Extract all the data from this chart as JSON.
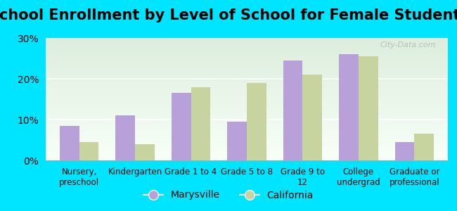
{
  "title": "School Enrollment by Level of School for Female Students",
  "categories": [
    "Nursery,\npreschool",
    "Kindergarten",
    "Grade 1 to 4",
    "Grade 5 to 8",
    "Grade 9 to\n12",
    "College\nundergrad",
    "Graduate or\nprofessional"
  ],
  "marysville": [
    8.5,
    11.0,
    16.5,
    9.5,
    24.5,
    26.0,
    4.5
  ],
  "california": [
    4.5,
    4.0,
    18.0,
    19.0,
    21.0,
    25.5,
    6.5
  ],
  "marysville_color": "#b8a0d8",
  "california_color": "#c8d4a0",
  "background_outer": "#00e5ff",
  "background_inner_top": "#ddeedd",
  "background_inner_bottom": "#f8fff8",
  "ylim": [
    0,
    30
  ],
  "yticks": [
    0,
    10,
    20,
    30
  ],
  "ytick_labels": [
    "0%",
    "10%",
    "20%",
    "30%"
  ],
  "legend_marysville": "Marysville",
  "legend_california": "California",
  "title_fontsize": 15,
  "watermark": "City-Data.com"
}
